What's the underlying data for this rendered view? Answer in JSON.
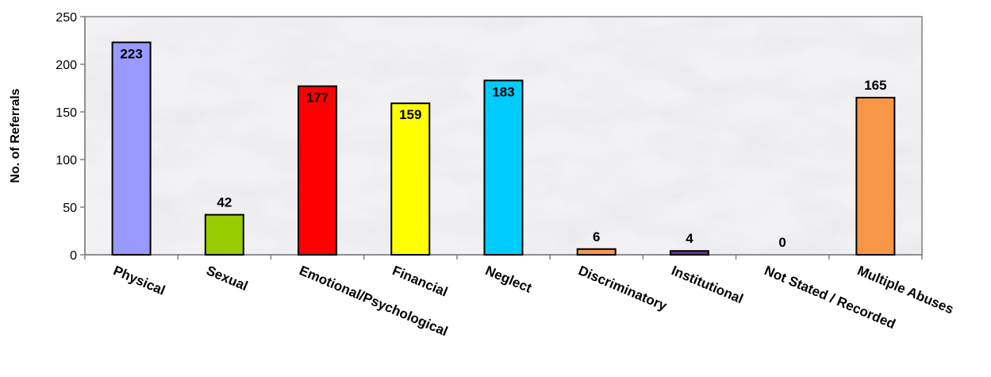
{
  "chart_data": {
    "type": "bar",
    "title": "",
    "xlabel": "",
    "ylabel": "No. of Referrals",
    "ylim": [
      0,
      250
    ],
    "yticks": [
      0,
      50,
      100,
      150,
      200,
      250
    ],
    "categories": [
      "Physical",
      "Sexual",
      "Emotional/Psychological",
      "Financial",
      "Neglect",
      "Discriminatory",
      "Institutional",
      "Not Stated / Recorded",
      "Multiple Abuses"
    ],
    "values": [
      223,
      42,
      177,
      159,
      183,
      6,
      4,
      0,
      165
    ],
    "data_labels": [
      "223",
      "42",
      "177",
      "159",
      "183",
      "6",
      "4",
      "0",
      "165"
    ],
    "colors": [
      "#9999ff",
      "#99cc00",
      "#ff0000",
      "#ffff00",
      "#00ccff",
      "#f79646",
      "#7030a0",
      "#cccccc",
      "#f79646"
    ],
    "label_position": [
      "inside",
      "above",
      "inside",
      "inside",
      "inside",
      "above",
      "above",
      "above",
      "above"
    ],
    "grid": false,
    "legend": "none",
    "background": "marble-texture"
  }
}
